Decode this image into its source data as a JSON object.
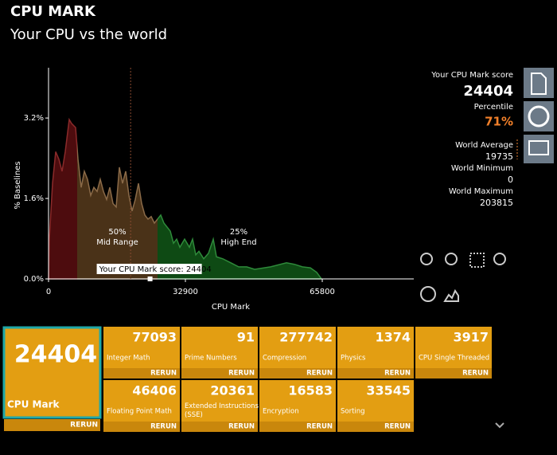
{
  "header": {
    "title": "CPU MARK",
    "subtitle": "Your CPU vs the world"
  },
  "chart_data": {
    "type": "area",
    "y_label": "% Baselines",
    "x_label": "CPU Mark",
    "xlim": [
      0,
      87800
    ],
    "xticks": [
      0,
      32900,
      65800
    ],
    "ylim": [
      0,
      4.2
    ],
    "yticks": [
      {
        "value": 0,
        "label": "0.0%"
      },
      {
        "value": 1.6,
        "label": "1.6%"
      },
      {
        "value": 3.2,
        "label": "3.2%"
      }
    ],
    "x": [
      0,
      191,
      957,
      1722,
      2487,
      3252,
      4017,
      4974,
      5548,
      6504,
      7078,
      7843,
      8609,
      9374,
      10139,
      10904,
      11669,
      12435,
      13200,
      13965,
      14730,
      15495,
      16261,
      17026,
      17791,
      18556,
      19321,
      20087,
      20852,
      21617,
      22382,
      23147,
      23913,
      24678,
      25443,
      26208,
      26973,
      27739,
      28504,
      29269,
      30034,
      30799,
      31565,
      32712,
      33860,
      34625,
      35390,
      36156,
      37303,
      38451,
      39599,
      40364,
      41895,
      43808,
      45721,
      47634,
      49547,
      53373,
      57199,
      59112,
      61025,
      62938,
      64468,
      65615
    ],
    "values": [
      0,
      0.79,
      1.9,
      2.53,
      2.38,
      2.14,
      2.53,
      3.17,
      3.09,
      3.01,
      2.38,
      1.82,
      2.14,
      1.98,
      1.66,
      1.82,
      1.74,
      1.98,
      1.74,
      1.58,
      1.82,
      1.5,
      1.43,
      2.22,
      1.9,
      2.14,
      1.66,
      1.35,
      1.58,
      1.9,
      1.5,
      1.27,
      1.19,
      1.24,
      1.11,
      1.19,
      1.27,
      1.11,
      1.03,
      0.95,
      0.71,
      0.79,
      0.63,
      0.79,
      0.63,
      0.79,
      0.48,
      0.55,
      0.4,
      0.51,
      0.79,
      0.44,
      0.4,
      0.32,
      0.24,
      0.24,
      0.19,
      0.24,
      0.32,
      0.29,
      0.24,
      0.22,
      0.13,
      0
    ],
    "regions": [
      {
        "from": 0,
        "to": 6900,
        "color": "#4d0c0e",
        "edge": "#8a2a2a"
      },
      {
        "from": 6900,
        "to": 26200,
        "color": "#4a3218",
        "edge": "#8a6a48",
        "label": "50%",
        "sublabel": "Mid Range"
      },
      {
        "from": 26200,
        "to": 87800,
        "color": "#0e4a14",
        "edge": "#2e8a3a",
        "label": "25%",
        "sublabel": "High End"
      }
    ],
    "marker": 24404,
    "marker_label": "Your CPU Mark score: 24404"
  },
  "summary": {
    "score_label": "Your CPU Mark score",
    "score": 24404,
    "percentile_label": "Percentile",
    "percentile": "71%",
    "world_average_label": "World Average",
    "world_average": 19735,
    "world_minimum_label": "World Minimum",
    "world_minimum": 0,
    "world_maximum_label": "World Maximum",
    "world_maximum": 203815
  },
  "main_tile": {
    "value": 24404,
    "name": "CPU Mark",
    "action": "RERUN"
  },
  "tests": [
    {
      "name": "Integer Math",
      "value": 77093,
      "action": "RERUN"
    },
    {
      "name": "Prime Numbers",
      "value": 91,
      "action": "RERUN"
    },
    {
      "name": "Compression",
      "value": 277742,
      "action": "RERUN"
    },
    {
      "name": "Physics",
      "value": 1374,
      "action": "RERUN"
    },
    {
      "name": "CPU Single Threaded",
      "value": 3917,
      "action": "RERUN"
    },
    {
      "name": "Floating Point Math",
      "value": 46406,
      "action": "RERUN"
    },
    {
      "name": "Extended Instructions (SSE)",
      "value": 20361,
      "action": "RERUN"
    },
    {
      "name": "Encryption",
      "value": 16583,
      "action": "RERUN"
    },
    {
      "name": "Sorting",
      "value": 33545,
      "action": "RERUN"
    }
  ]
}
